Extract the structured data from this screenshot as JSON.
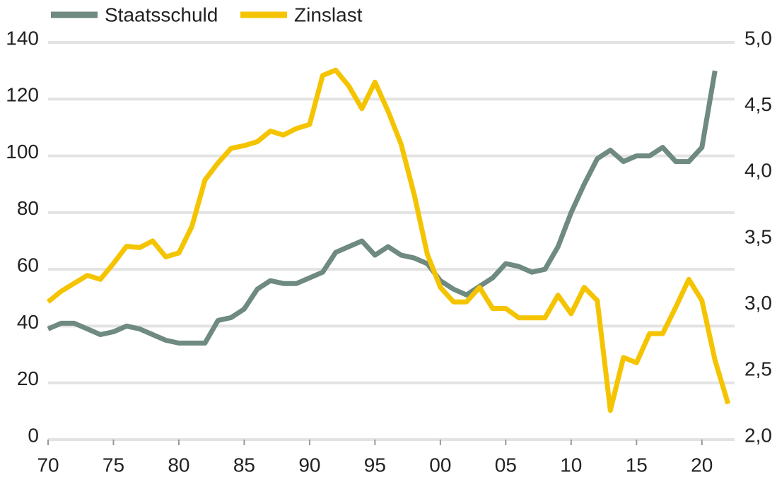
{
  "chart_data": {
    "type": "line",
    "x": [
      1970,
      1971,
      1972,
      1973,
      1974,
      1975,
      1976,
      1977,
      1978,
      1979,
      1980,
      1981,
      1982,
      1983,
      1984,
      1985,
      1986,
      1987,
      1988,
      1989,
      1990,
      1991,
      1992,
      1993,
      1994,
      1995,
      1996,
      1997,
      1998,
      1999,
      2000,
      2001,
      2002,
      2003,
      2004,
      2005,
      2006,
      2007,
      2008,
      2009,
      2010,
      2011,
      2012,
      2013,
      2014,
      2015,
      2016,
      2017,
      2018,
      2019,
      2020,
      2021,
      2022
    ],
    "series": [
      {
        "name": "Staatsschuld",
        "color": "#6f8a80",
        "axis": "y",
        "values": [
          39,
          41,
          41,
          39,
          37,
          38,
          40,
          39,
          37,
          35,
          34,
          34,
          34,
          42,
          43,
          46,
          53,
          56,
          55,
          55,
          57,
          59,
          66,
          68,
          70,
          65,
          68,
          65,
          64,
          62,
          56,
          53,
          51,
          54,
          57,
          62,
          61,
          59,
          60,
          68,
          80,
          90,
          99,
          102,
          98,
          100,
          100,
          103,
          98,
          98,
          103,
          130,
          null
        ]
      },
      {
        "name": "Zinslast",
        "color": "#f5c400",
        "axis": "y2",
        "values": [
          3.04,
          3.12,
          3.18,
          3.24,
          3.21,
          3.33,
          3.46,
          3.45,
          3.5,
          3.38,
          3.41,
          3.61,
          3.96,
          4.09,
          4.2,
          4.22,
          4.25,
          4.33,
          4.3,
          4.35,
          4.38,
          4.75,
          4.79,
          4.67,
          4.5,
          4.7,
          4.48,
          4.23,
          3.85,
          3.4,
          3.15,
          3.04,
          3.04,
          3.15,
          2.99,
          2.99,
          2.92,
          2.92,
          2.92,
          3.09,
          2.95,
          3.15,
          3.05,
          2.22,
          2.62,
          2.58,
          2.8,
          2.8,
          3.0,
          3.21,
          3.05,
          2.6,
          2.27
        ]
      }
    ],
    "xlim": [
      1970,
      2022.5
    ],
    "xticks": [
      {
        "value": 1970,
        "label": "70"
      },
      {
        "value": 1975,
        "label": "75"
      },
      {
        "value": 1980,
        "label": "80"
      },
      {
        "value": 1985,
        "label": "85"
      },
      {
        "value": 1990,
        "label": "90"
      },
      {
        "value": 1995,
        "label": "95"
      },
      {
        "value": 2000,
        "label": "00"
      },
      {
        "value": 2005,
        "label": "05"
      },
      {
        "value": 2010,
        "label": "10"
      },
      {
        "value": 2015,
        "label": "15"
      },
      {
        "value": 2020,
        "label": "20"
      }
    ],
    "ylim": [
      0,
      140
    ],
    "yticks": [
      0,
      20,
      40,
      60,
      80,
      100,
      120,
      140
    ],
    "y2lim": [
      2,
      5
    ],
    "y2ticks": [
      {
        "value": 2,
        "label": "2,0"
      },
      {
        "value": 2.5,
        "label": "2,5"
      },
      {
        "value": 3,
        "label": "3,0"
      },
      {
        "value": 3.5,
        "label": "3,5"
      },
      {
        "value": 4,
        "label": "4,0"
      },
      {
        "value": 4.5,
        "label": "4,5"
      },
      {
        "value": 5,
        "label": "5,0"
      }
    ],
    "grid": true
  }
}
